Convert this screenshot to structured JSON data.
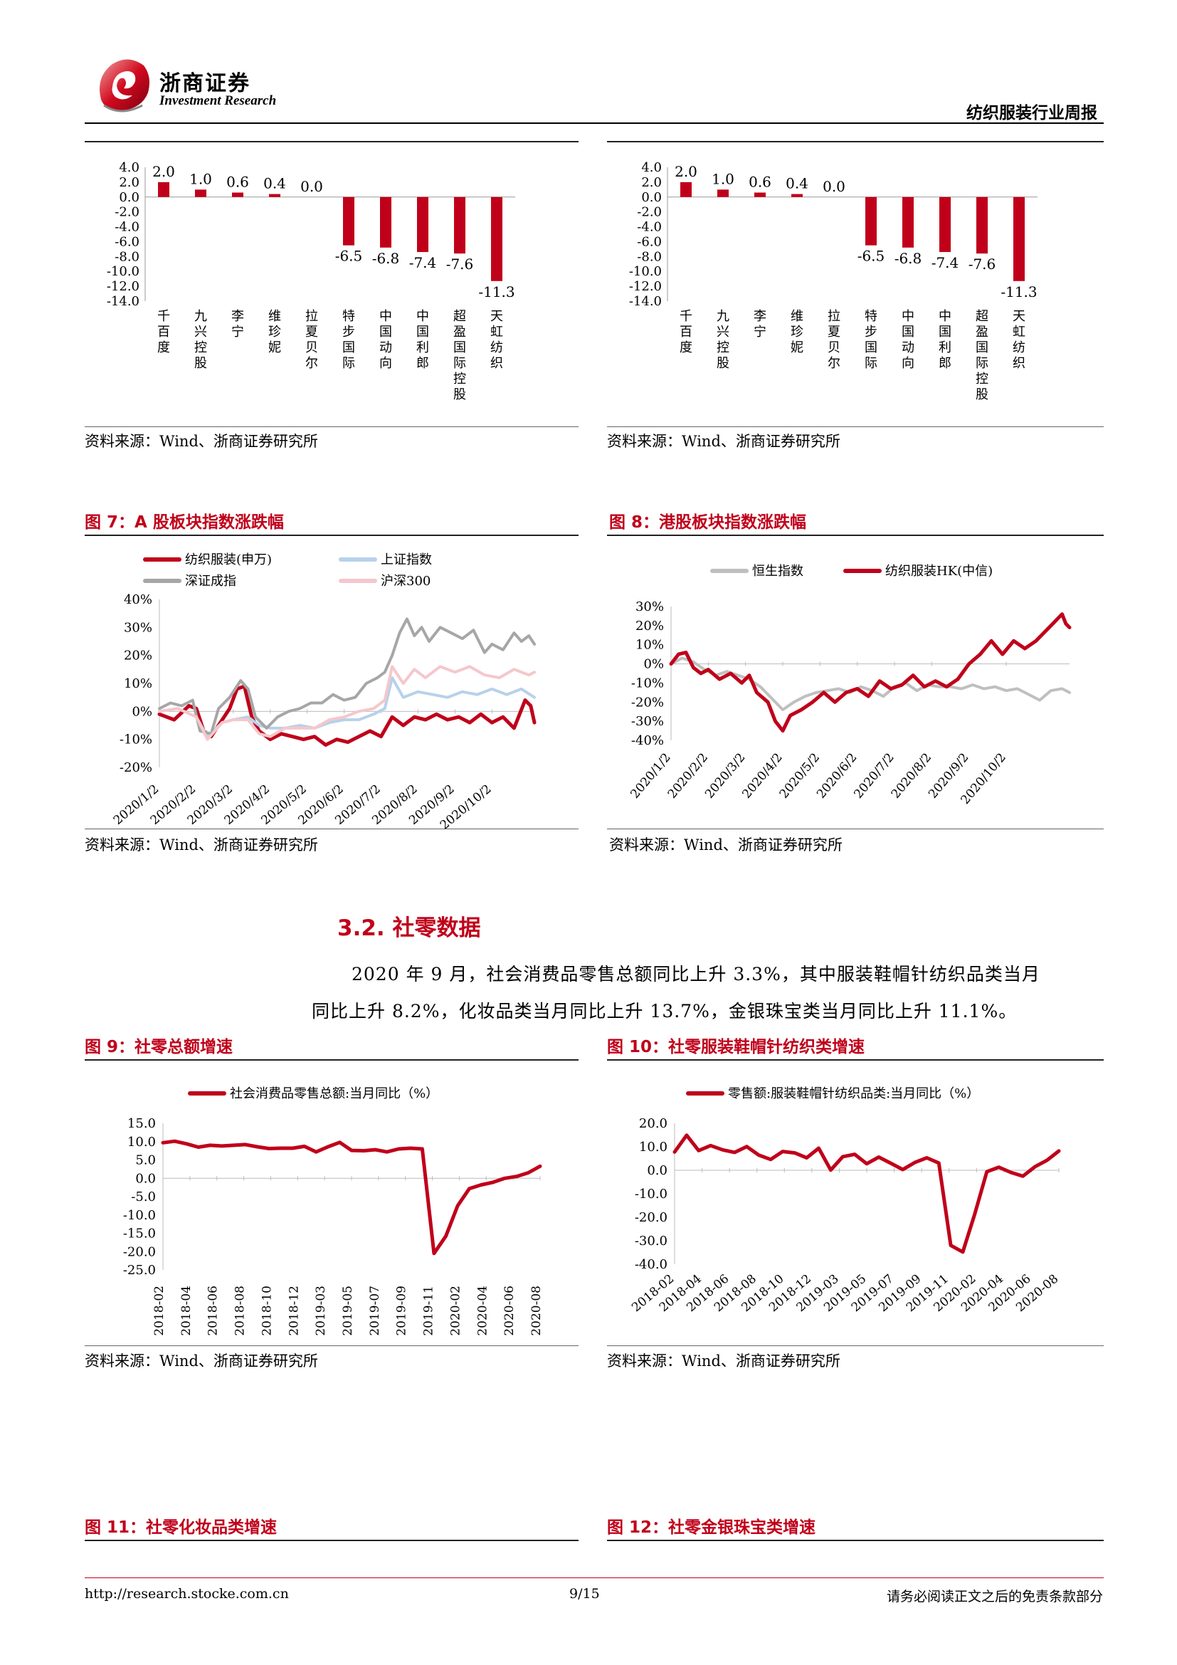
{
  "header": {
    "logo_cn": "浙商证券",
    "logo_en": "Investment Research",
    "report_name": "纺织服装行业周报"
  },
  "top_left": {
    "source": "资料来源：Wind、浙商证券研究所",
    "chart_data": {
      "type": "bar",
      "categories": [
        "千百度",
        "九兴控股",
        "李宁",
        "维珍妮",
        "拉夏贝尔",
        "特步国际",
        "中国动向",
        "中国利郎",
        "超盈国际控股",
        "天虹纺织"
      ],
      "values": [
        2.0,
        1.0,
        0.6,
        0.4,
        0.0,
        -6.5,
        -6.8,
        -7.4,
        -7.6,
        -11.3
      ],
      "ylim": [
        -14,
        4
      ],
      "yticks": [
        "4.0",
        "2.0",
        "0.0",
        "-2.0",
        "-4.0",
        "-6.0",
        "-8.0",
        "-10.0",
        "-12.0",
        "-14.0"
      ],
      "color": "#c0001a"
    }
  },
  "top_right": {
    "source": "资料来源：Wind、浙商证券研究所",
    "chart_data": {
      "type": "bar",
      "categories": [
        "千百度",
        "九兴控股",
        "李宁",
        "维珍妮",
        "拉夏贝尔",
        "特步国际",
        "中国动向",
        "中国利郎",
        "超盈国际控股",
        "天虹纺织"
      ],
      "values": [
        2.0,
        1.0,
        0.6,
        0.4,
        0.0,
        -6.5,
        -6.8,
        -7.4,
        -7.6,
        -11.3
      ],
      "ylim": [
        -14,
        4
      ],
      "yticks": [
        "4.0",
        "2.0",
        "0.0",
        "-2.0",
        "-4.0",
        "-6.0",
        "-8.0",
        "-10.0",
        "-12.0",
        "-14.0"
      ],
      "color": "#c0001a"
    }
  },
  "fig7": {
    "title": "图 7：A 股板块指数涨跌幅",
    "source": "资料来源：Wind、浙商证券研究所",
    "chart_data": {
      "type": "line",
      "ylim": [
        -20,
        40
      ],
      "yticks": [
        "40%",
        "30%",
        "20%",
        "10%",
        "0%",
        "-10%",
        "-20%"
      ],
      "xticks": [
        "2020/1/2",
        "2020/2/2",
        "2020/3/2",
        "2020/4/2",
        "2020/5/2",
        "2020/6/2",
        "2020/7/2",
        "2020/8/2",
        "2020/9/2",
        "2020/10/2"
      ],
      "series": [
        {
          "name": "纺织服装(申万)",
          "color": "#c0001a",
          "x": [
            0,
            0.4,
            0.8,
            1.0,
            1.2,
            1.4,
            1.7,
            1.9,
            2.1,
            2.3,
            2.5,
            2.7,
            3.0,
            3.3,
            3.6,
            3.9,
            4.2,
            4.5,
            4.8,
            5.1,
            5.4,
            5.7,
            6.0,
            6.3,
            6.6,
            6.9,
            7.2,
            7.5,
            7.8,
            8.1,
            8.4,
            8.7,
            9.0,
            9.3,
            9.6,
            9.9,
            10.05,
            10.15
          ],
          "y": [
            -1,
            -3,
            2,
            1,
            -7,
            -9,
            -3,
            1,
            8,
            9,
            -2,
            -7,
            -10,
            -8,
            -9,
            -10,
            -9,
            -12,
            -10,
            -11,
            -9,
            -7,
            -9,
            -2,
            -5,
            -2,
            -3,
            -1,
            -3,
            -2,
            -4,
            -1,
            -4,
            -2,
            -6,
            4,
            2,
            -4
          ]
        },
        {
          "name": "上证指数",
          "color": "#b7d1ea",
          "x": [
            0,
            0.5,
            1.0,
            1.3,
            1.7,
            2.0,
            2.4,
            2.7,
            3.0,
            3.4,
            3.8,
            4.2,
            4.6,
            5.0,
            5.4,
            5.8,
            6.1,
            6.3,
            6.6,
            7.0,
            7.4,
            7.8,
            8.2,
            8.6,
            9.0,
            9.4,
            9.8,
            10.15
          ],
          "y": [
            0,
            1,
            -2,
            -9,
            -4,
            -3,
            -2,
            -5,
            -6,
            -6,
            -5,
            -6,
            -4,
            -3,
            -3,
            -1,
            1,
            12,
            5,
            7,
            6,
            5,
            7,
            6,
            8,
            6,
            8,
            5
          ]
        },
        {
          "name": "深证成指",
          "color": "#a6a6a6",
          "x": [
            0,
            0.3,
            0.6,
            0.9,
            1.1,
            1.4,
            1.6,
            1.9,
            2.2,
            2.4,
            2.6,
            2.9,
            3.2,
            3.5,
            3.8,
            4.1,
            4.4,
            4.7,
            5.0,
            5.3,
            5.6,
            5.9,
            6.1,
            6.3,
            6.5,
            6.7,
            6.9,
            7.1,
            7.3,
            7.6,
            7.9,
            8.2,
            8.5,
            8.8,
            9.0,
            9.3,
            9.6,
            9.8,
            10.0,
            10.15
          ],
          "y": [
            1,
            3,
            2,
            4,
            -7,
            -8,
            1,
            5,
            11,
            8,
            -2,
            -6,
            -2,
            0,
            1,
            3,
            3,
            6,
            4,
            5,
            10,
            12,
            14,
            20,
            28,
            33,
            27,
            30,
            25,
            30,
            28,
            26,
            29,
            21,
            24,
            22,
            28,
            25,
            27,
            24
          ]
        },
        {
          "name": "沪深300",
          "color": "#f5c7cc",
          "x": [
            0,
            0.5,
            1.0,
            1.3,
            1.7,
            2.0,
            2.4,
            2.7,
            3.0,
            3.4,
            3.8,
            4.2,
            4.6,
            5.0,
            5.4,
            5.8,
            6.1,
            6.3,
            6.6,
            6.9,
            7.2,
            7.6,
            8.0,
            8.4,
            8.8,
            9.2,
            9.6,
            10.0,
            10.15
          ],
          "y": [
            0,
            1,
            -2,
            -10,
            -4,
            -3,
            -3,
            -8,
            -9,
            -6,
            -6,
            -6,
            -3,
            -2,
            0,
            1,
            4,
            16,
            10,
            15,
            12,
            16,
            14,
            16,
            13,
            12,
            15,
            13,
            14
          ]
        }
      ]
    }
  },
  "fig8": {
    "title": "图 8：港股板块指数涨跌幅",
    "source": "资料来源：Wind、浙商证券研究所",
    "chart_data": {
      "type": "line",
      "ylim": [
        -40,
        30
      ],
      "yticks": [
        "30%",
        "20%",
        "10%",
        "0%",
        "-10%",
        "-20%",
        "-30%",
        "-40%"
      ],
      "xticks": [
        "2020/1/2",
        "2020/2/2",
        "2020/3/2",
        "2020/4/2",
        "2020/5/2",
        "2020/6/2",
        "2020/7/2",
        "2020/8/2",
        "2020/9/2",
        "2020/10/2"
      ],
      "series": [
        {
          "name": "恒生指数",
          "color": "#bfbfbf",
          "x": [
            0,
            0.3,
            0.6,
            0.9,
            1.2,
            1.5,
            1.8,
            2.1,
            2.4,
            2.7,
            3.0,
            3.3,
            3.6,
            3.9,
            4.2,
            4.5,
            4.8,
            5.1,
            5.4,
            5.7,
            6.0,
            6.3,
            6.6,
            6.9,
            7.2,
            7.5,
            7.8,
            8.1,
            8.4,
            8.7,
            9.0,
            9.3,
            9.6,
            9.9,
            10.2,
            10.5,
            10.7
          ],
          "y": [
            0,
            3,
            1,
            -3,
            -6,
            -4,
            -6,
            -8,
            -12,
            -18,
            -24,
            -20,
            -17,
            -15,
            -14,
            -13,
            -15,
            -12,
            -14,
            -17,
            -12,
            -10,
            -14,
            -11,
            -12,
            -12,
            -13,
            -11,
            -13,
            -12,
            -14,
            -13,
            -16,
            -19,
            -14,
            -13,
            -15
          ]
        },
        {
          "name": "纺织服装HK(中信)",
          "color": "#c0001a",
          "x": [
            0,
            0.2,
            0.4,
            0.6,
            0.8,
            1.0,
            1.3,
            1.6,
            1.9,
            2.1,
            2.3,
            2.6,
            2.8,
            3.0,
            3.2,
            3.5,
            3.8,
            4.1,
            4.4,
            4.7,
            5.0,
            5.3,
            5.6,
            5.9,
            6.2,
            6.5,
            6.8,
            7.1,
            7.4,
            7.7,
            8.0,
            8.3,
            8.6,
            8.9,
            9.2,
            9.5,
            9.8,
            10.1,
            10.3,
            10.5,
            10.6,
            10.7
          ],
          "y": [
            0,
            5,
            6,
            -2,
            -5,
            -3,
            -8,
            -5,
            -10,
            -6,
            -15,
            -20,
            -30,
            -35,
            -27,
            -24,
            -20,
            -15,
            -20,
            -15,
            -13,
            -17,
            -9,
            -13,
            -11,
            -6,
            -12,
            -9,
            -12,
            -8,
            0,
            5,
            12,
            5,
            12,
            8,
            12,
            18,
            22,
            26,
            21,
            19
          ]
        }
      ]
    }
  },
  "section": {
    "title": "3.2. 社零数据",
    "para_line1": "2020 年 9 月，社会消费品零售总额同比上升 3.3%，其中服装鞋帽针纺织品类当月",
    "para_line2": "同比上升 8.2%，化妆品类当月同比上升 13.7%，金银珠宝类当月同比上升 11.1%。"
  },
  "fig9": {
    "title": "图 9：社零总额增速",
    "source": "资料来源：Wind、浙商证券研究所",
    "chart_data": {
      "type": "line",
      "ylim": [
        -25,
        15
      ],
      "yticks": [
        "15.0",
        "10.0",
        "5.0",
        "0.0",
        "-5.0",
        "-10.0",
        "-15.0",
        "-20.0",
        "-25.0"
      ],
      "xticks": [
        "2018-02",
        "2018-04",
        "2018-06",
        "2018-08",
        "2018-10",
        "2018-12",
        "2019-03",
        "2019-05",
        "2019-07",
        "2019-09",
        "2019-11",
        "2020-02",
        "2020-04",
        "2020-06",
        "2020-08"
      ],
      "series": [
        {
          "name": "社会消费品零售总额:当月同比（%）",
          "color": "#c0001a",
          "x": [
            0,
            1,
            2,
            3,
            4,
            5,
            6,
            7,
            8,
            9,
            10,
            11,
            12,
            13,
            14,
            15,
            16,
            17,
            18,
            19,
            20,
            21,
            22,
            23,
            24,
            25,
            26,
            27,
            28,
            29,
            30,
            31,
            32
          ],
          "y": [
            9.7,
            10.1,
            9.4,
            8.5,
            9.0,
            8.8,
            9.0,
            9.2,
            8.6,
            8.1,
            8.2,
            8.2,
            8.7,
            7.2,
            8.6,
            9.8,
            7.6,
            7.5,
            7.8,
            7.2,
            8.0,
            8.2,
            8.0,
            -20.5,
            -15.8,
            -7.5,
            -2.8,
            -1.8,
            -1.1,
            0.0,
            0.5,
            1.5,
            3.3
          ]
        }
      ]
    }
  },
  "fig10": {
    "title": "图 10：社零服装鞋帽针纺织类增速",
    "source": "资料来源：Wind、浙商证券研究所",
    "chart_data": {
      "type": "line",
      "ylim": [
        -40,
        20
      ],
      "yticks": [
        "20.0",
        "10.0",
        "0.0",
        "-10.0",
        "-20.0",
        "-30.0",
        "-40.0"
      ],
      "xticks": [
        "2018-02",
        "2018-04",
        "2018-06",
        "2018-08",
        "2018-10",
        "2018-12",
        "2019-03",
        "2019-05",
        "2019-07",
        "2019-09",
        "2019-11",
        "2020-02",
        "2020-04",
        "2020-06",
        "2020-08"
      ],
      "series": [
        {
          "name": "零售额:服装鞋帽针纺织品类:当月同比（%）",
          "color": "#c0001a",
          "x": [
            0,
            1,
            2,
            3,
            4,
            5,
            6,
            7,
            8,
            9,
            10,
            11,
            12,
            13,
            14,
            15,
            16,
            17,
            18,
            19,
            20,
            21,
            22,
            23,
            24,
            25,
            26,
            27,
            28,
            29,
            30,
            31,
            32
          ],
          "y": [
            7.8,
            14.9,
            8.4,
            10.5,
            8.7,
            7.6,
            10.1,
            6.5,
            4.6,
            8.0,
            7.4,
            5.3,
            9.4,
            0.1,
            5.8,
            6.8,
            2.8,
            5.6,
            3.0,
            0.3,
            3.3,
            5.3,
            3.1,
            -32.0,
            -34.8,
            -18.5,
            -0.6,
            1.3,
            -0.9,
            -2.5,
            1.5,
            4.2,
            8.2
          ]
        }
      ]
    }
  },
  "fig11": {
    "title": "图 11：社零化妆品类增速"
  },
  "fig12": {
    "title": "图 12：社零金银珠宝类增速"
  },
  "footer": {
    "url": "http://research.stocke.com.cn",
    "page": "9/15",
    "disclaimer": "请务必阅读正文之后的免责条款部分"
  }
}
